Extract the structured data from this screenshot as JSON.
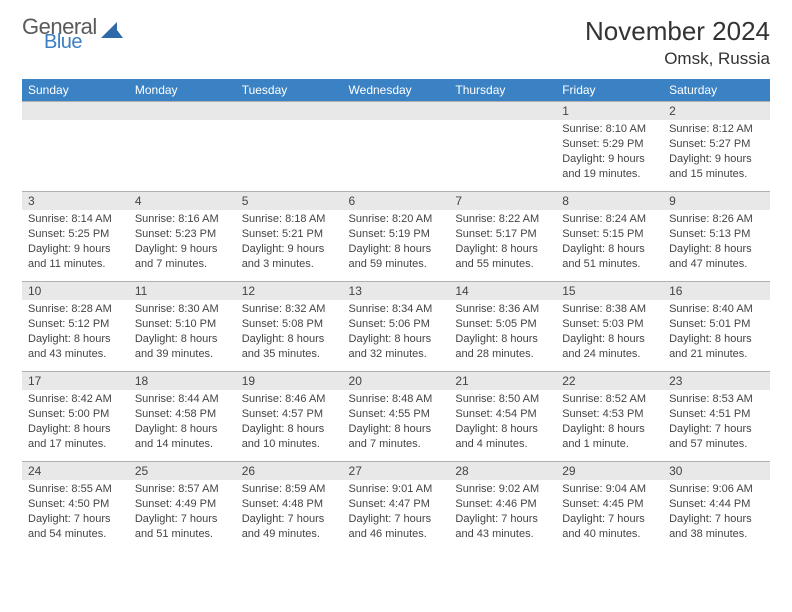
{
  "logo": {
    "line1": "General",
    "line2": "Blue",
    "color_general": "#5a5a5a",
    "color_blue": "#3b7fc4",
    "icon_color": "#2f6aa8"
  },
  "title": "November 2024",
  "location": "Omsk, Russia",
  "header_bg": "#3b82c4",
  "header_fg": "#ffffff",
  "daynum_bg": "#e8e8e8",
  "border_color": "#b0b0b0",
  "text_color": "#444444",
  "weekdays": [
    "Sunday",
    "Monday",
    "Tuesday",
    "Wednesday",
    "Thursday",
    "Friday",
    "Saturday"
  ],
  "weeks": [
    [
      null,
      null,
      null,
      null,
      null,
      {
        "n": "1",
        "sunrise": "8:10 AM",
        "sunset": "5:29 PM",
        "dl1": "Daylight: 9 hours",
        "dl2": "and 19 minutes."
      },
      {
        "n": "2",
        "sunrise": "8:12 AM",
        "sunset": "5:27 PM",
        "dl1": "Daylight: 9 hours",
        "dl2": "and 15 minutes."
      }
    ],
    [
      {
        "n": "3",
        "sunrise": "8:14 AM",
        "sunset": "5:25 PM",
        "dl1": "Daylight: 9 hours",
        "dl2": "and 11 minutes."
      },
      {
        "n": "4",
        "sunrise": "8:16 AM",
        "sunset": "5:23 PM",
        "dl1": "Daylight: 9 hours",
        "dl2": "and 7 minutes."
      },
      {
        "n": "5",
        "sunrise": "8:18 AM",
        "sunset": "5:21 PM",
        "dl1": "Daylight: 9 hours",
        "dl2": "and 3 minutes."
      },
      {
        "n": "6",
        "sunrise": "8:20 AM",
        "sunset": "5:19 PM",
        "dl1": "Daylight: 8 hours",
        "dl2": "and 59 minutes."
      },
      {
        "n": "7",
        "sunrise": "8:22 AM",
        "sunset": "5:17 PM",
        "dl1": "Daylight: 8 hours",
        "dl2": "and 55 minutes."
      },
      {
        "n": "8",
        "sunrise": "8:24 AM",
        "sunset": "5:15 PM",
        "dl1": "Daylight: 8 hours",
        "dl2": "and 51 minutes."
      },
      {
        "n": "9",
        "sunrise": "8:26 AM",
        "sunset": "5:13 PM",
        "dl1": "Daylight: 8 hours",
        "dl2": "and 47 minutes."
      }
    ],
    [
      {
        "n": "10",
        "sunrise": "8:28 AM",
        "sunset": "5:12 PM",
        "dl1": "Daylight: 8 hours",
        "dl2": "and 43 minutes."
      },
      {
        "n": "11",
        "sunrise": "8:30 AM",
        "sunset": "5:10 PM",
        "dl1": "Daylight: 8 hours",
        "dl2": "and 39 minutes."
      },
      {
        "n": "12",
        "sunrise": "8:32 AM",
        "sunset": "5:08 PM",
        "dl1": "Daylight: 8 hours",
        "dl2": "and 35 minutes."
      },
      {
        "n": "13",
        "sunrise": "8:34 AM",
        "sunset": "5:06 PM",
        "dl1": "Daylight: 8 hours",
        "dl2": "and 32 minutes."
      },
      {
        "n": "14",
        "sunrise": "8:36 AM",
        "sunset": "5:05 PM",
        "dl1": "Daylight: 8 hours",
        "dl2": "and 28 minutes."
      },
      {
        "n": "15",
        "sunrise": "8:38 AM",
        "sunset": "5:03 PM",
        "dl1": "Daylight: 8 hours",
        "dl2": "and 24 minutes."
      },
      {
        "n": "16",
        "sunrise": "8:40 AM",
        "sunset": "5:01 PM",
        "dl1": "Daylight: 8 hours",
        "dl2": "and 21 minutes."
      }
    ],
    [
      {
        "n": "17",
        "sunrise": "8:42 AM",
        "sunset": "5:00 PM",
        "dl1": "Daylight: 8 hours",
        "dl2": "and 17 minutes."
      },
      {
        "n": "18",
        "sunrise": "8:44 AM",
        "sunset": "4:58 PM",
        "dl1": "Daylight: 8 hours",
        "dl2": "and 14 minutes."
      },
      {
        "n": "19",
        "sunrise": "8:46 AM",
        "sunset": "4:57 PM",
        "dl1": "Daylight: 8 hours",
        "dl2": "and 10 minutes."
      },
      {
        "n": "20",
        "sunrise": "8:48 AM",
        "sunset": "4:55 PM",
        "dl1": "Daylight: 8 hours",
        "dl2": "and 7 minutes."
      },
      {
        "n": "21",
        "sunrise": "8:50 AM",
        "sunset": "4:54 PM",
        "dl1": "Daylight: 8 hours",
        "dl2": "and 4 minutes."
      },
      {
        "n": "22",
        "sunrise": "8:52 AM",
        "sunset": "4:53 PM",
        "dl1": "Daylight: 8 hours",
        "dl2": "and 1 minute."
      },
      {
        "n": "23",
        "sunrise": "8:53 AM",
        "sunset": "4:51 PM",
        "dl1": "Daylight: 7 hours",
        "dl2": "and 57 minutes."
      }
    ],
    [
      {
        "n": "24",
        "sunrise": "8:55 AM",
        "sunset": "4:50 PM",
        "dl1": "Daylight: 7 hours",
        "dl2": "and 54 minutes."
      },
      {
        "n": "25",
        "sunrise": "8:57 AM",
        "sunset": "4:49 PM",
        "dl1": "Daylight: 7 hours",
        "dl2": "and 51 minutes."
      },
      {
        "n": "26",
        "sunrise": "8:59 AM",
        "sunset": "4:48 PM",
        "dl1": "Daylight: 7 hours",
        "dl2": "and 49 minutes."
      },
      {
        "n": "27",
        "sunrise": "9:01 AM",
        "sunset": "4:47 PM",
        "dl1": "Daylight: 7 hours",
        "dl2": "and 46 minutes."
      },
      {
        "n": "28",
        "sunrise": "9:02 AM",
        "sunset": "4:46 PM",
        "dl1": "Daylight: 7 hours",
        "dl2": "and 43 minutes."
      },
      {
        "n": "29",
        "sunrise": "9:04 AM",
        "sunset": "4:45 PM",
        "dl1": "Daylight: 7 hours",
        "dl2": "and 40 minutes."
      },
      {
        "n": "30",
        "sunrise": "9:06 AM",
        "sunset": "4:44 PM",
        "dl1": "Daylight: 7 hours",
        "dl2": "and 38 minutes."
      }
    ]
  ],
  "labels": {
    "sunrise_prefix": "Sunrise: ",
    "sunset_prefix": "Sunset: "
  }
}
